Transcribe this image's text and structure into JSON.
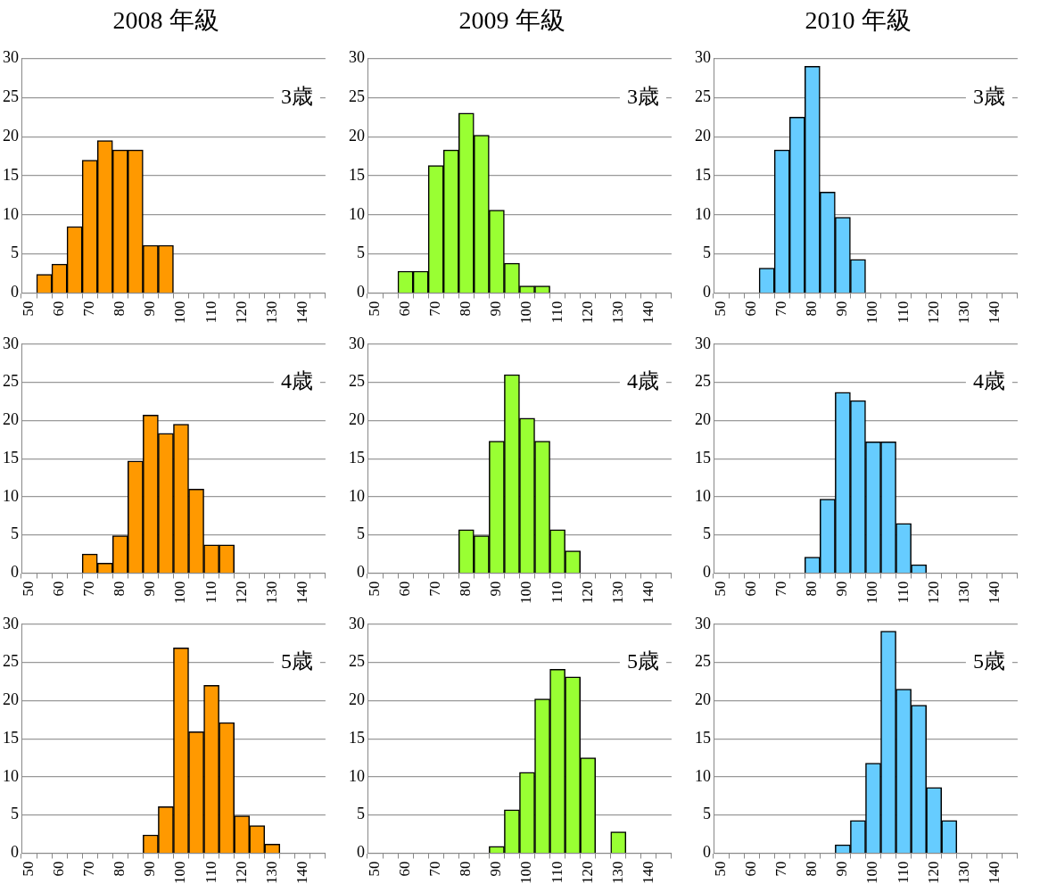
{
  "chart_data": [
    {
      "type": "bar",
      "title": "2008 年級",
      "categories": [
        "50",
        null,
        "60",
        null,
        "70",
        null,
        "80",
        null,
        "90",
        null,
        "100",
        null,
        "110",
        null,
        "120",
        null,
        "130",
        null,
        "140",
        null
      ],
      "values": [
        null,
        2.4,
        3.7,
        8.5,
        17,
        19.5,
        18.3,
        18.3,
        6.1,
        6.1,
        null,
        null,
        null,
        null,
        null,
        null,
        null,
        null,
        null,
        null
      ],
      "color": "#ff9900",
      "ylim": [
        0,
        30
      ],
      "yticks": [
        0,
        5,
        10,
        15,
        20,
        25,
        30
      ],
      "grid": "y",
      "annotations": [
        "3歳"
      ]
    },
    {
      "type": "bar",
      "title": "2009 年級",
      "categories": [
        "50",
        null,
        "60",
        null,
        "70",
        null,
        "80",
        null,
        "90",
        null,
        "100",
        null,
        "110",
        null,
        "120",
        null,
        "130",
        null,
        "140",
        null
      ],
      "values": [
        null,
        null,
        2.8,
        2.8,
        16.3,
        18.3,
        23,
        20.2,
        10.6,
        3.8,
        0.9,
        0.9,
        null,
        null,
        null,
        null,
        null,
        null,
        null,
        null
      ],
      "color": "#99ff33",
      "ylim": [
        0,
        30
      ],
      "yticks": [
        0,
        5,
        10,
        15,
        20,
        25,
        30
      ],
      "grid": "y",
      "annotations": [
        "3歳"
      ]
    },
    {
      "type": "bar",
      "title": "2010 年級",
      "categories": [
        "50",
        null,
        "60",
        null,
        "70",
        null,
        "80",
        null,
        "90",
        null,
        "100",
        null,
        "110",
        null,
        "120",
        null,
        "130",
        null,
        "140",
        null
      ],
      "values": [
        null,
        null,
        null,
        3.2,
        18.3,
        22.5,
        29,
        12.9,
        9.7,
        4.3,
        null,
        null,
        null,
        null,
        null,
        null,
        null,
        null,
        null,
        null
      ],
      "color": "#66ccff",
      "ylim": [
        0,
        30
      ],
      "yticks": [
        0,
        5,
        10,
        15,
        20,
        25,
        30
      ],
      "grid": "y",
      "annotations": [
        "3歳"
      ]
    },
    {
      "type": "bar",
      "categories": [
        "50",
        null,
        "60",
        null,
        "70",
        null,
        "80",
        null,
        "90",
        null,
        "100",
        null,
        "110",
        null,
        "120",
        null,
        "130",
        null,
        "140",
        null
      ],
      "values": [
        null,
        null,
        null,
        null,
        2.5,
        1.3,
        4.9,
        14.7,
        20.7,
        18.3,
        19.5,
        11,
        3.7,
        3.7,
        null,
        null,
        null,
        null,
        null,
        null
      ],
      "color": "#ff9900",
      "ylim": [
        0,
        30
      ],
      "yticks": [
        0,
        5,
        10,
        15,
        20,
        25,
        30
      ],
      "grid": "y",
      "annotations": [
        "4歳"
      ]
    },
    {
      "type": "bar",
      "categories": [
        "50",
        null,
        "60",
        null,
        "70",
        null,
        "80",
        null,
        "90",
        null,
        "100",
        null,
        "110",
        null,
        "120",
        null,
        "130",
        null,
        "140",
        null
      ],
      "values": [
        null,
        null,
        null,
        null,
        null,
        null,
        5.7,
        4.9,
        17.3,
        26,
        20.3,
        17.3,
        5.7,
        2.9,
        null,
        null,
        null,
        null,
        null,
        null
      ],
      "color": "#99ff33",
      "ylim": [
        0,
        30
      ],
      "yticks": [
        0,
        5,
        10,
        15,
        20,
        25,
        30
      ],
      "grid": "y",
      "annotations": [
        "4歳"
      ]
    },
    {
      "type": "bar",
      "categories": [
        "50",
        null,
        "60",
        null,
        "70",
        null,
        "80",
        null,
        "90",
        null,
        "100",
        null,
        "110",
        null,
        "120",
        null,
        "130",
        null,
        "140",
        null
      ],
      "values": [
        null,
        null,
        null,
        null,
        null,
        null,
        2.1,
        9.7,
        23.7,
        22.6,
        17.2,
        17.2,
        6.5,
        1.1,
        null,
        null,
        null,
        null,
        null,
        null
      ],
      "color": "#66ccff",
      "ylim": [
        0,
        30
      ],
      "yticks": [
        0,
        5,
        10,
        15,
        20,
        25,
        30
      ],
      "grid": "y",
      "annotations": [
        "4歳"
      ]
    },
    {
      "type": "bar",
      "categories": [
        "50",
        null,
        "60",
        null,
        "70",
        null,
        "80",
        null,
        "90",
        null,
        "100",
        null,
        "110",
        null,
        "120",
        null,
        "130",
        null,
        "140",
        null
      ],
      "values": [
        null,
        null,
        null,
        null,
        null,
        null,
        null,
        null,
        2.4,
        6.1,
        26.9,
        15.9,
        22,
        17.1,
        4.9,
        3.6,
        1.2,
        null,
        null,
        null
      ],
      "color": "#ff9900",
      "ylim": [
        0,
        30
      ],
      "yticks": [
        0,
        5,
        10,
        15,
        20,
        25,
        30
      ],
      "grid": "y",
      "annotations": [
        "5歳"
      ]
    },
    {
      "type": "bar",
      "categories": [
        "50",
        null,
        "60",
        null,
        "70",
        null,
        "80",
        null,
        "90",
        null,
        "100",
        null,
        "110",
        null,
        "120",
        null,
        "130",
        null,
        "140",
        null
      ],
      "values": [
        null,
        null,
        null,
        null,
        null,
        null,
        null,
        null,
        0.9,
        5.7,
        10.6,
        20.2,
        24.1,
        23.1,
        12.5,
        null,
        2.8,
        null,
        null,
        null
      ],
      "color": "#99ff33",
      "ylim": [
        0,
        30
      ],
      "yticks": [
        0,
        5,
        10,
        15,
        20,
        25,
        30
      ],
      "grid": "y",
      "annotations": [
        "5歳"
      ]
    },
    {
      "type": "bar",
      "categories": [
        "50",
        null,
        "60",
        null,
        "70",
        null,
        "80",
        null,
        "90",
        null,
        "100",
        null,
        "110",
        null,
        "120",
        null,
        "130",
        null,
        "140",
        null
      ],
      "values": [
        null,
        null,
        null,
        null,
        null,
        null,
        null,
        null,
        1.1,
        4.3,
        11.8,
        29.1,
        21.5,
        19.4,
        8.6,
        4.3,
        null,
        null,
        null,
        null
      ],
      "color": "#66ccff",
      "ylim": [
        0,
        30
      ],
      "yticks": [
        0,
        5,
        10,
        15,
        20,
        25,
        30
      ],
      "grid": "y",
      "annotations": [
        "5歳"
      ]
    }
  ]
}
